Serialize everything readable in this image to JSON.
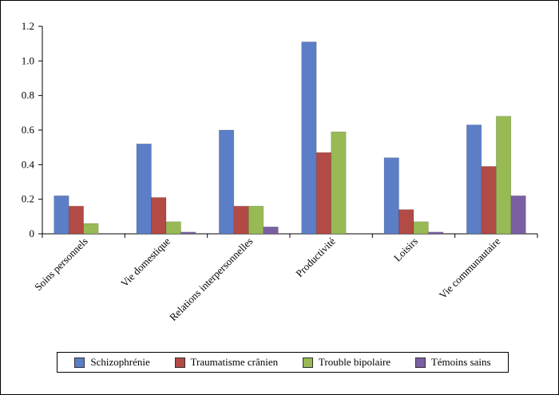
{
  "chart_data": {
    "type": "bar",
    "categories": [
      "Soins personnels",
      "Vie domestique",
      "Relations interpersonnelles",
      "Productivité",
      "Loisirs",
      "Vie communautaire"
    ],
    "series": [
      {
        "name": "Schizophrénie",
        "color": "#5b7ec6",
        "values": [
          0.22,
          0.52,
          0.6,
          1.11,
          0.44,
          0.63
        ]
      },
      {
        "name": "Traumatisme crânien",
        "color": "#b24a45",
        "values": [
          0.16,
          0.21,
          0.16,
          0.47,
          0.14,
          0.39
        ]
      },
      {
        "name": "Trouble bipolaire",
        "color": "#97ba54",
        "values": [
          0.06,
          0.07,
          0.16,
          0.59,
          0.07,
          0.68
        ]
      },
      {
        "name": "Témoins sains",
        "color": "#7a5fa3",
        "values": [
          0.0,
          0.01,
          0.04,
          0.0,
          0.01,
          0.22
        ]
      }
    ],
    "ylim": [
      0,
      1.2
    ],
    "yticks": [
      0,
      0.2,
      0.4,
      0.6,
      0.8,
      1.0,
      1.2
    ],
    "ytick_labels": [
      "0",
      "0.2",
      "0.4",
      "0.6",
      "0.8",
      "1.0",
      "1.2"
    ],
    "grid": false,
    "legend_position": "bottom"
  }
}
